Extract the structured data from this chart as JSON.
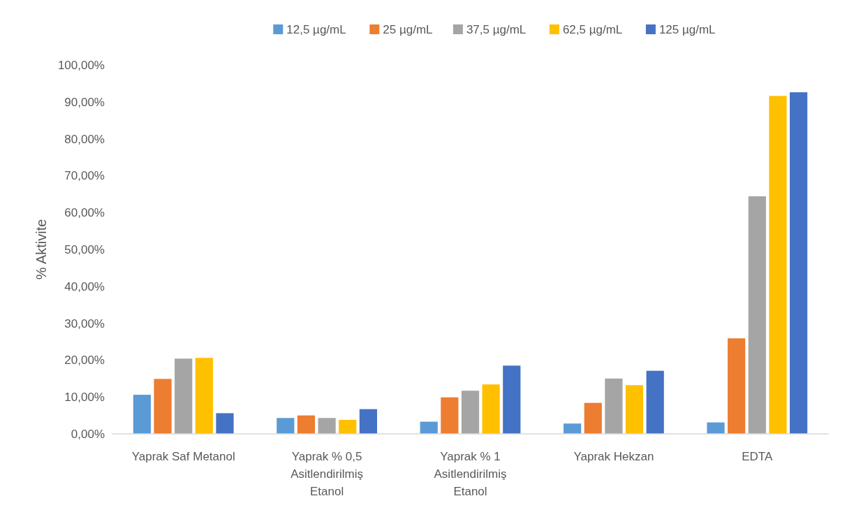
{
  "chart_data": {
    "type": "bar",
    "ylabel": "% Aktivite",
    "categories": [
      "Yaprak Saf Metanol",
      "Yaprak % 0,5 Asitlendirilmiş Etanol",
      "Yaprak % 1 Asitlendirilmiş Etanol",
      "Yaprak Hekzan",
      "EDTA"
    ],
    "series": [
      {
        "name": "12,5 µg/mL",
        "color": "#5b9bd5",
        "values": [
          10.6,
          4.3,
          3.3,
          2.8,
          3.1
        ]
      },
      {
        "name": "25 µg/mL",
        "color": "#ed7d31",
        "values": [
          14.9,
          5.0,
          9.9,
          8.4,
          25.9
        ]
      },
      {
        "name": "37,5 µg/mL",
        "color": "#a5a5a5",
        "values": [
          20.4,
          4.3,
          11.7,
          15.0,
          64.4
        ]
      },
      {
        "name": "62,5 µg/mL",
        "color": "#ffc000",
        "values": [
          20.6,
          3.8,
          13.4,
          13.2,
          91.6
        ]
      },
      {
        "name": "125 µg/mL",
        "color": "#4472c4",
        "values": [
          5.6,
          6.7,
          18.5,
          17.1,
          92.6
        ]
      }
    ],
    "ylim": [
      0,
      100
    ],
    "yticks": [
      {
        "value": 0,
        "label": "0,00%"
      },
      {
        "value": 10,
        "label": "10,00%"
      },
      {
        "value": 20,
        "label": "20,00%"
      },
      {
        "value": 30,
        "label": "30,00%"
      },
      {
        "value": 40,
        "label": "40,00%"
      },
      {
        "value": 50,
        "label": "50,00%"
      },
      {
        "value": 60,
        "label": "60,00%"
      },
      {
        "value": 70,
        "label": "70,00%"
      },
      {
        "value": 80,
        "label": "80,00%"
      },
      {
        "value": 90,
        "label": "90,00%"
      },
      {
        "value": 100,
        "label": "100,00%"
      }
    ],
    "grid": false,
    "legend": "top"
  }
}
